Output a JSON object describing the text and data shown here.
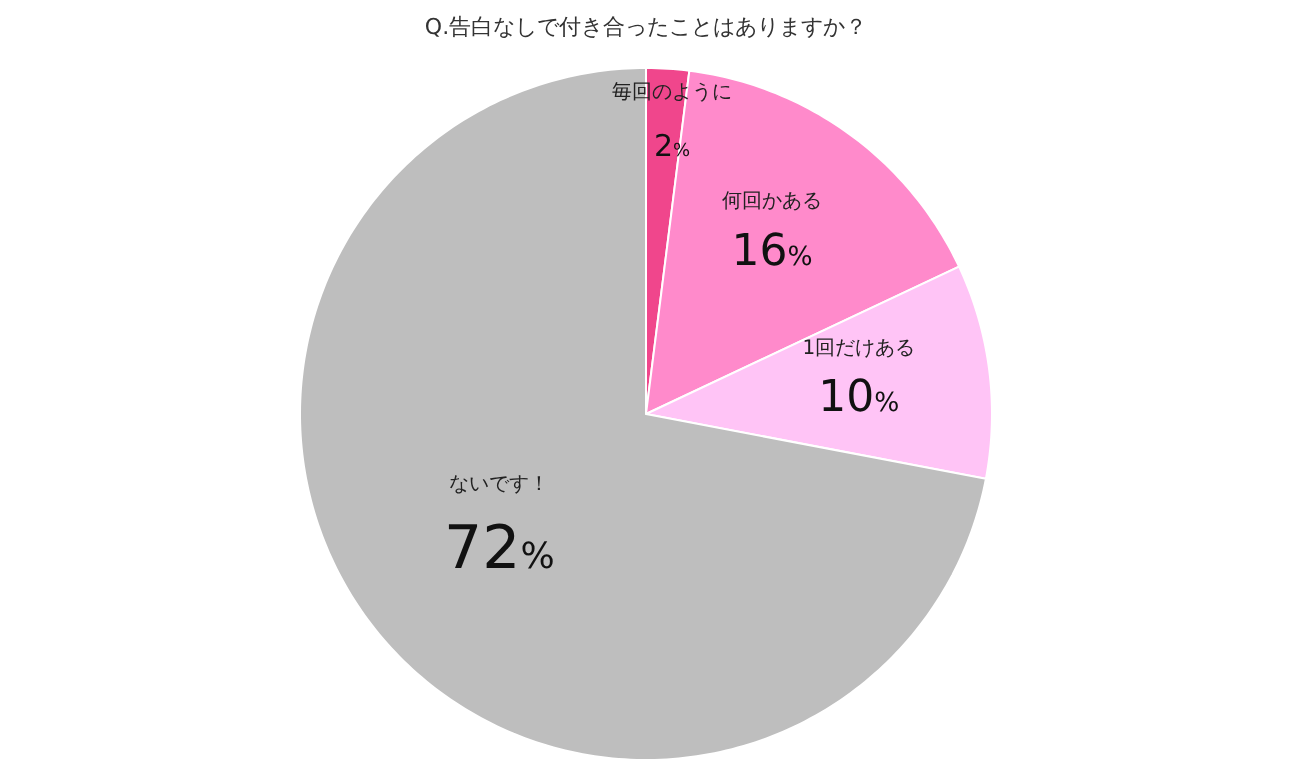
{
  "chart_data": {
    "type": "pie",
    "title": "Q.告白なしで付き合ったことはありますか？",
    "categories": [
      "毎回のように",
      "何回かある",
      "1回だけある",
      "ないです！"
    ],
    "values": [
      2,
      16,
      10,
      72
    ],
    "colors": [
      "#f0468c",
      "#ff8acb",
      "#ffc4f6",
      "#bebebe"
    ],
    "value_labels": [
      "2%",
      "16%",
      "10%",
      "72%"
    ],
    "legend": false
  }
}
